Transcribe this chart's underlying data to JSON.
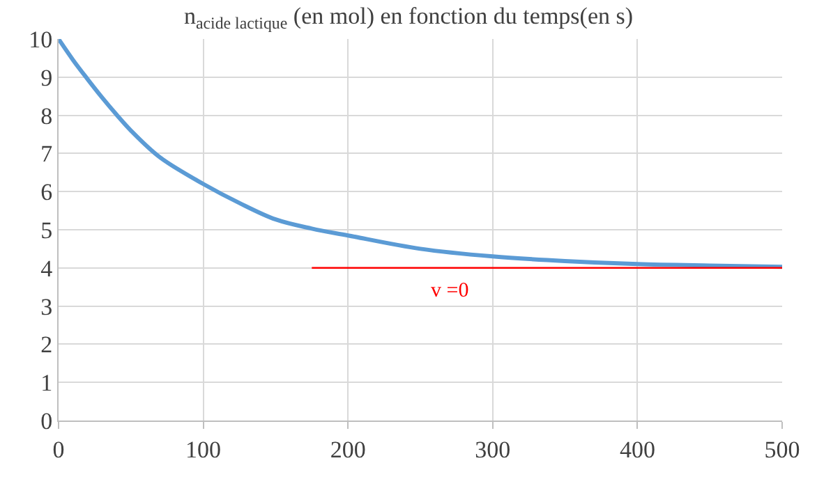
{
  "chart_data": {
    "type": "line",
    "title": "n$_{acide lactique}$ (en mol) en fonction du temps(en s)",
    "series": [
      {
        "color": "#5b9bd5",
        "x": [
          0,
          10,
          20,
          30,
          40,
          50,
          70,
          100,
          125,
          150,
          175,
          200,
          250,
          300,
          350,
          400,
          450,
          500
        ],
        "values": [
          10,
          9.45,
          8.95,
          8.47,
          8.02,
          7.6,
          6.9,
          6.2,
          5.7,
          5.27,
          5.03,
          4.85,
          4.5,
          4.3,
          4.18,
          4.1,
          4.06,
          4.03
        ]
      },
      {
        "color": "#ff0000",
        "x": [
          175,
          500
        ],
        "values": [
          4,
          4
        ]
      }
    ],
    "annotations": [
      "v =0"
    ],
    "xlim": [
      0,
      500
    ],
    "xticks": [
      0,
      100,
      200,
      300,
      400,
      500
    ],
    "ylim": [
      0,
      10
    ],
    "yticks": [
      0,
      1,
      2,
      3,
      4,
      5,
      6,
      7,
      8,
      9,
      10
    ],
    "grid": true,
    "marker": "none"
  }
}
